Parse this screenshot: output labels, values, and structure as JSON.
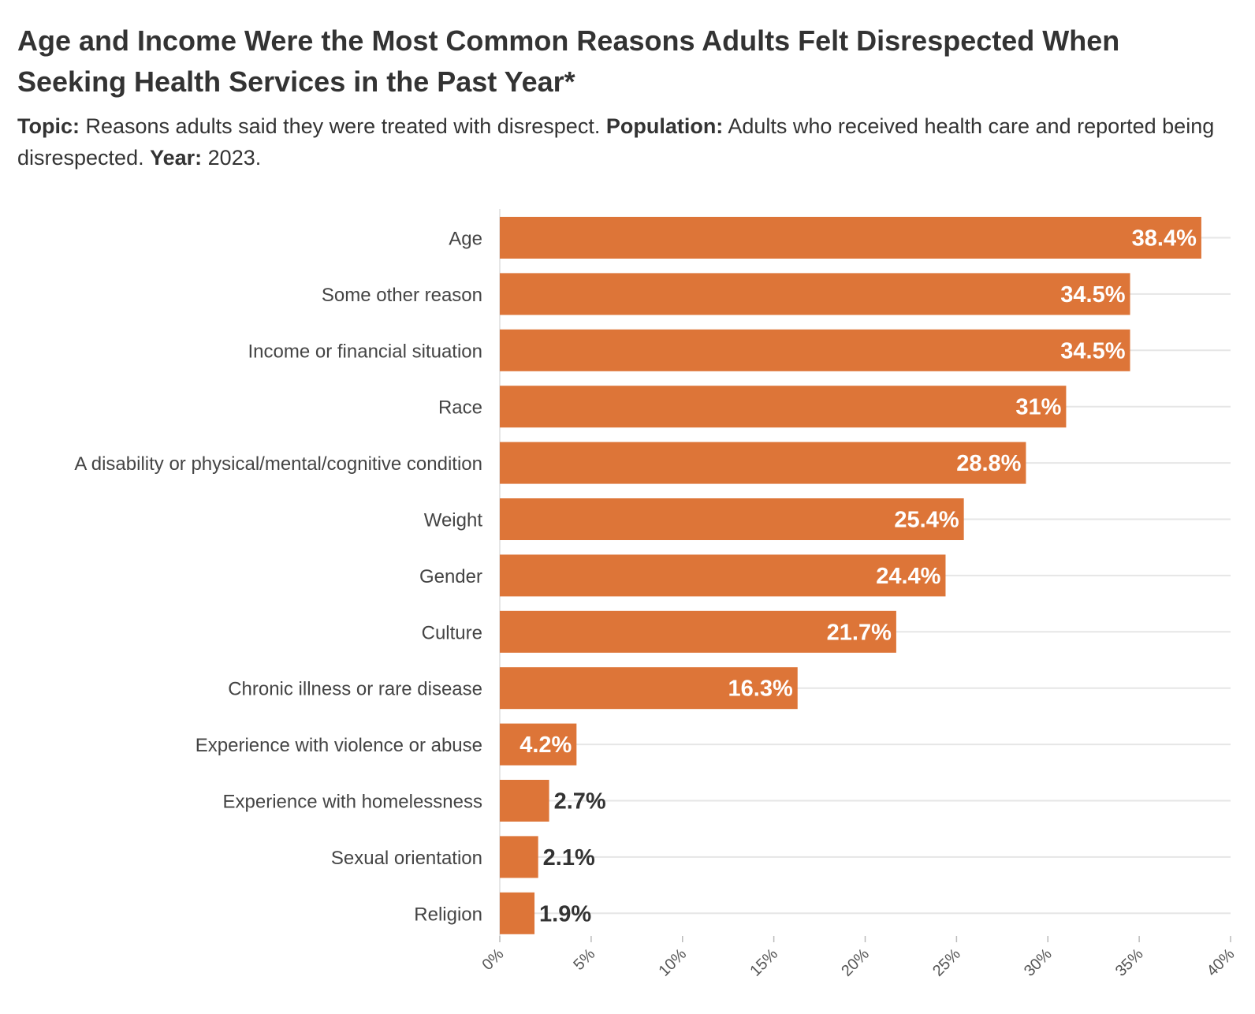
{
  "title": "Age and Income Were the Most Common Reasons Adults Felt Disrespected When Seeking Health Services in the Past Year*",
  "subtitle": {
    "topic_label": "Topic:",
    "topic_text": " Reasons adults said they were treated with disrespect. ",
    "population_label": "Population:",
    "population_text": " Adults who received health care and reported being disrespected. ",
    "year_label": "Year:",
    "year_text": " 2023."
  },
  "colors": {
    "bar": "#dd7538",
    "label_inside": "#ffffff",
    "label_outside": "#333333",
    "grid": "#e6e6e6",
    "axis_text": "#555555"
  },
  "chart_data": {
    "type": "bar",
    "orientation": "horizontal",
    "categories": [
      "Age",
      "Some other reason",
      "Income or financial situation",
      "Race",
      "A disability or physical/mental/cognitive condition",
      "Weight",
      "Gender",
      "Culture",
      "Chronic illness or rare disease",
      "Experience with violence or abuse",
      "Experience with homelessness",
      "Sexual orientation",
      "Religion"
    ],
    "values": [
      38.4,
      34.5,
      34.5,
      31,
      28.8,
      25.4,
      24.4,
      21.7,
      16.3,
      4.2,
      2.7,
      2.1,
      1.9
    ],
    "value_labels": [
      "38.4%",
      "34.5%",
      "34.5%",
      "31%",
      "28.8%",
      "25.4%",
      "24.4%",
      "21.7%",
      "16.3%",
      "4.2%",
      "2.7%",
      "2.1%",
      "1.9%"
    ],
    "xlim": [
      0,
      40
    ],
    "x_ticks": [
      0,
      5,
      10,
      15,
      20,
      25,
      30,
      35,
      40
    ],
    "x_tick_labels": [
      "0%",
      "5%",
      "10%",
      "15%",
      "20%",
      "25%",
      "30%",
      "35%",
      "40%"
    ],
    "grid": true
  }
}
